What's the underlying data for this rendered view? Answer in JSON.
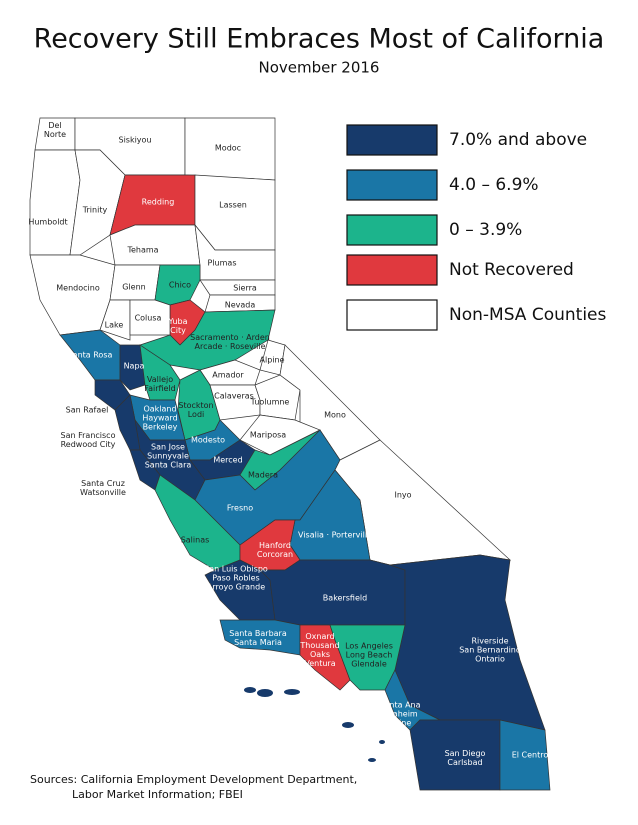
{
  "header": {
    "title": "Recovery Still Embraces Most of California",
    "subtitle": "November 2016"
  },
  "legend": [
    {
      "label": "7.0% and above",
      "color": "#173a6b"
    },
    {
      "label": "4.0 – 6.9%",
      "color": "#1a76a6"
    },
    {
      "label": "0 – 3.9%",
      "color": "#1cb48c"
    },
    {
      "label": "Not Recovered",
      "color": "#e0393e"
    },
    {
      "label": "Non-MSA Counties",
      "color": "#ffffff"
    }
  ],
  "regions": [
    {
      "label": [
        "Del",
        "Norte"
      ],
      "color": "#ffffff"
    },
    {
      "label": [
        "Siskiyou"
      ],
      "color": "#ffffff"
    },
    {
      "label": [
        "Modoc"
      ],
      "color": "#ffffff"
    },
    {
      "label": [
        "Humboldt"
      ],
      "color": "#ffffff"
    },
    {
      "label": [
        "Trinity"
      ],
      "color": "#ffffff"
    },
    {
      "label": [
        "Redding"
      ],
      "color": "#e0393e"
    },
    {
      "label": [
        "Lassen"
      ],
      "color": "#ffffff"
    },
    {
      "label": [
        "Tehama"
      ],
      "color": "#ffffff"
    },
    {
      "label": [
        "Plumas"
      ],
      "color": "#ffffff"
    },
    {
      "label": [
        "Mendocino"
      ],
      "color": "#ffffff"
    },
    {
      "label": [
        "Glenn"
      ],
      "color": "#ffffff"
    },
    {
      "label": [
        "Chico"
      ],
      "color": "#1cb48c"
    },
    {
      "label": [
        "Sierra"
      ],
      "color": "#ffffff"
    },
    {
      "label": [
        "Nevada"
      ],
      "color": "#ffffff"
    },
    {
      "label": [
        "Yuba",
        "City"
      ],
      "color": "#e0393e"
    },
    {
      "label": [
        "Lake"
      ],
      "color": "#ffffff"
    },
    {
      "label": [
        "Colusa"
      ],
      "color": "#ffffff"
    },
    {
      "label": [
        "Santa Rosa"
      ],
      "color": "#1a76a6"
    },
    {
      "label": [
        "Napa"
      ],
      "color": "#173a6b"
    },
    {
      "label": [
        "Sacramento · Arden",
        "Arcade · Roseville"
      ],
      "color": "#1cb48c"
    },
    {
      "label": [
        "Alpine"
      ],
      "color": "#ffffff"
    },
    {
      "label": [
        "Amador"
      ],
      "color": "#ffffff"
    },
    {
      "label": [
        "Vallejo",
        "Fairfield"
      ],
      "color": "#1cb48c"
    },
    {
      "label": [
        "Stockton",
        "Lodi"
      ],
      "color": "#1cb48c"
    },
    {
      "label": [
        "Calaveras"
      ],
      "color": "#ffffff"
    },
    {
      "label": [
        "Tuolumne"
      ],
      "color": "#ffffff"
    },
    {
      "label": [
        "Mono"
      ],
      "color": "#ffffff"
    },
    {
      "label": [
        "San Rafael"
      ],
      "color": "#173a6b"
    },
    {
      "label": [
        "Oakland",
        "Hayward",
        "Berkeley"
      ],
      "color": "#1a76a6"
    },
    {
      "label": [
        "Modesto"
      ],
      "color": "#1a76a6"
    },
    {
      "label": [
        "Mariposa"
      ],
      "color": "#ffffff"
    },
    {
      "label": [
        "Merced"
      ],
      "color": "#173a6b"
    },
    {
      "label": [
        "San Jose",
        "Sunnyvale",
        "Santa Clara"
      ],
      "color": "#173a6b"
    },
    {
      "label": [
        "Madera"
      ],
      "color": "#1cb48c"
    },
    {
      "label": [
        "San Francisco",
        "Redwood City"
      ],
      "color": "#173a6b"
    },
    {
      "label": [
        "Santa Cruz",
        "Watsonville"
      ],
      "color": "#173a6b"
    },
    {
      "label": [
        "Fresno"
      ],
      "color": "#1a76a6"
    },
    {
      "label": [
        "Inyo"
      ],
      "color": "#ffffff"
    },
    {
      "label": [
        "Salinas"
      ],
      "color": "#1cb48c"
    },
    {
      "label": [
        "Visalia · Porterville"
      ],
      "color": "#1a76a6"
    },
    {
      "label": [
        "Hanford",
        "Corcoran"
      ],
      "color": "#e0393e"
    },
    {
      "label": [
        "San Luis Obispo",
        "Paso Robles",
        "Arroyo Grande"
      ],
      "color": "#173a6b"
    },
    {
      "label": [
        "Bakersfield"
      ],
      "color": "#173a6b"
    },
    {
      "label": [
        "Riverside",
        "San Bernardino",
        "Ontario"
      ],
      "color": "#173a6b"
    },
    {
      "label": [
        "Santa Barbara",
        "Santa Maria"
      ],
      "color": "#1a76a6"
    },
    {
      "label": [
        "Oxnard",
        "Thousand",
        "Oaks",
        "Ventura"
      ],
      "color": "#e0393e"
    },
    {
      "label": [
        "Los Angeles",
        "Long Beach",
        "Glendale"
      ],
      "color": "#1cb48c"
    },
    {
      "label": [
        "Santa Ana",
        "Anaheim",
        "Irvine"
      ],
      "color": "#1a76a6"
    },
    {
      "label": [
        "San Diego",
        "Carlsbad"
      ],
      "color": "#173a6b"
    },
    {
      "label": [
        "El Centro"
      ],
      "color": "#1a76a6"
    }
  ],
  "source": [
    "Sources: California Employment Development Department,",
    "Labor Market Information; FBEI"
  ]
}
